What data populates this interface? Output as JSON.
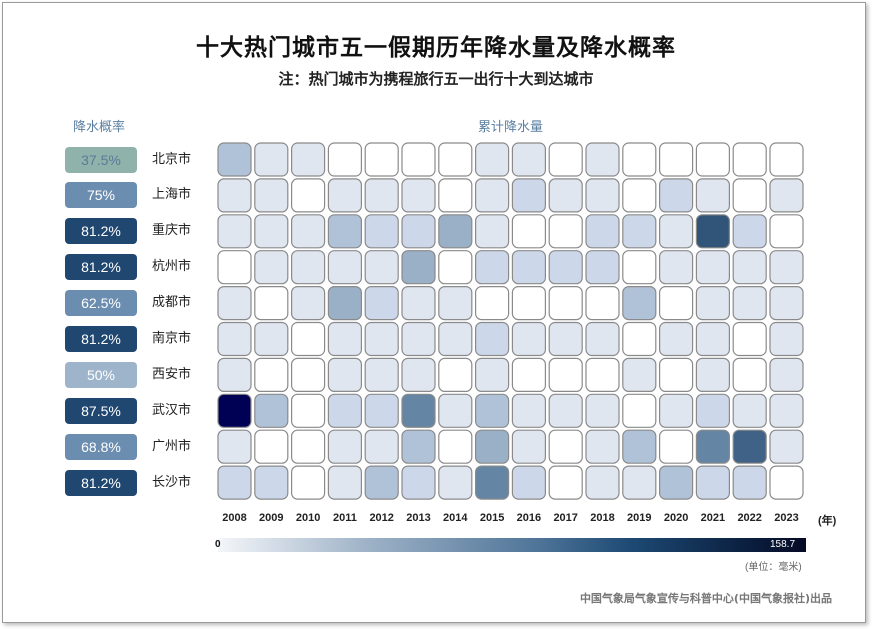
{
  "chart_data": {
    "type": "heatmap",
    "title": "十大热门城市五一假期历年降水量及降水概率",
    "subtitle": "注：热门城市为携程旅行五一出行十大到达城市",
    "prob_header": "降水概率",
    "heatmap_header": "累计降水量",
    "x_unit": "(年)",
    "years": [
      "2008",
      "2009",
      "2010",
      "2011",
      "2012",
      "2013",
      "2014",
      "2015",
      "2016",
      "2017",
      "2018",
      "2019",
      "2020",
      "2021",
      "2022",
      "2023"
    ],
    "cities": [
      "北京市",
      "上海市",
      "重庆市",
      "杭州市",
      "成都市",
      "南京市",
      "西安市",
      "武汉市",
      "广州市",
      "长沙市"
    ],
    "probabilities": [
      "37.5%",
      "75%",
      "81.2%",
      "81.2%",
      "62.5%",
      "81.2%",
      "50%",
      "87.5%",
      "68.8%",
      "81.2%"
    ],
    "probability_colors": [
      "#8fb3aa",
      "#6b8db0",
      "#1f4770",
      "#1f4770",
      "#6b8db0",
      "#1f4770",
      "#9db4cb",
      "#1f4770",
      "#6b8db0",
      "#1f4770"
    ],
    "values": [
      [
        30,
        5,
        5,
        0,
        0,
        0,
        0,
        5,
        5,
        0,
        5,
        0,
        0,
        0,
        0,
        0
      ],
      [
        5,
        5,
        0,
        5,
        5,
        5,
        0,
        5,
        20,
        5,
        5,
        0,
        20,
        5,
        0,
        5
      ],
      [
        5,
        5,
        5,
        30,
        20,
        20,
        40,
        5,
        0,
        0,
        20,
        20,
        5,
        100,
        20,
        0
      ],
      [
        0,
        5,
        5,
        5,
        5,
        40,
        0,
        20,
        20,
        20,
        20,
        0,
        5,
        5,
        5,
        5
      ],
      [
        5,
        0,
        5,
        40,
        20,
        5,
        5,
        0,
        0,
        0,
        0,
        30,
        0,
        5,
        5,
        5
      ],
      [
        5,
        5,
        0,
        5,
        5,
        5,
        5,
        20,
        5,
        5,
        5,
        0,
        5,
        5,
        0,
        5
      ],
      [
        5,
        0,
        0,
        5,
        5,
        5,
        0,
        5,
        0,
        0,
        0,
        5,
        0,
        5,
        0,
        5
      ],
      [
        158.7,
        30,
        0,
        20,
        20,
        65,
        5,
        30,
        5,
        5,
        5,
        0,
        5,
        20,
        5,
        5
      ],
      [
        5,
        0,
        0,
        5,
        5,
        30,
        0,
        40,
        5,
        0,
        5,
        30,
        0,
        65,
        90,
        5
      ],
      [
        20,
        20,
        0,
        5,
        30,
        20,
        5,
        65,
        20,
        0,
        5,
        5,
        30,
        20,
        20,
        0
      ]
    ],
    "scale_min": "0",
    "scale_max": "158.7",
    "unit": "(单位：毫米)",
    "colorscale": [
      "#ffffff",
      "#dfe6f0",
      "#ccd8ea",
      "#b0c2d8",
      "#9ab0c6",
      "#6585a5",
      "#315479",
      "#000055"
    ]
  },
  "footer": "中国气象局气象宣传与科普中心(中国气象报社)出品"
}
